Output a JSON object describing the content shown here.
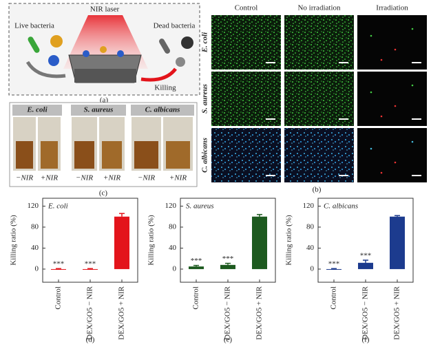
{
  "panel_a": {
    "laser": "NIR laser",
    "live": "Live bacteria",
    "dead": "Dead bacteria",
    "killing": "Killing",
    "label": "(a)"
  },
  "panel_b": {
    "columns": [
      "Control",
      "No irradiation",
      "Irradiation"
    ],
    "rows": [
      "E. coli",
      "S. aureus",
      "C. albicans"
    ],
    "label": "(b)"
  },
  "panel_c": {
    "species": [
      "E. coli",
      "S. aureus",
      "C. albicans"
    ],
    "conditions": [
      "−NIR",
      "+NIR"
    ],
    "label": "(c)"
  },
  "chart_data": [
    {
      "type": "bar",
      "title": "E. coli",
      "ylabel": "Killing ratio (%)",
      "label": "(d)",
      "color": "#e3141b",
      "categories": [
        "Control",
        "DEX/GO5 − NIR",
        "DEX/GO5 + NIR"
      ],
      "values": [
        0,
        0,
        100
      ],
      "errors": [
        1,
        1,
        6
      ],
      "significance": [
        "***",
        "***"
      ],
      "ylim": [
        -25,
        135
      ],
      "yticks": [
        0,
        40,
        80,
        120
      ]
    },
    {
      "type": "bar",
      "title": "S. aureus",
      "ylabel": "Killing ratio (%)",
      "label": "(e)",
      "color": "#1d5a1f",
      "categories": [
        "Control",
        "DEX/GO5 − NIR",
        "DEX/GO5 + NIR"
      ],
      "values": [
        5,
        8,
        100
      ],
      "errors": [
        2,
        3,
        4
      ],
      "significance": [
        "***",
        "***"
      ],
      "ylim": [
        -25,
        135
      ],
      "yticks": [
        0,
        40,
        80,
        120
      ]
    },
    {
      "type": "bar",
      "title": "C. albicans",
      "ylabel": "Killing ratio (%)",
      "label": "(f)",
      "color": "#1c3b8e",
      "categories": [
        "Control",
        "DEX/GO5 − NIR",
        "DEX/GO5 + NIR"
      ],
      "values": [
        0,
        12,
        100
      ],
      "errors": [
        1,
        5,
        2
      ],
      "significance": [
        "***",
        "***"
      ],
      "ylim": [
        -25,
        135
      ],
      "yticks": [
        0,
        40,
        80,
        120
      ]
    }
  ]
}
